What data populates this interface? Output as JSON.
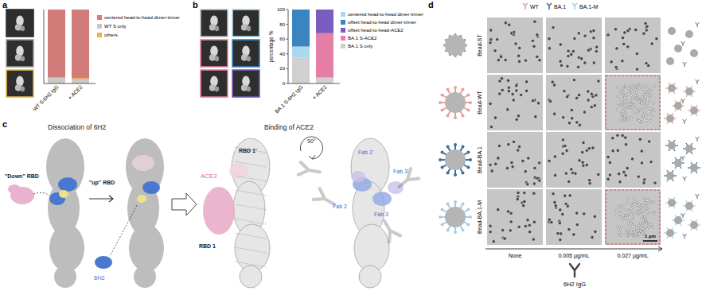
{
  "panel_labels": [
    "a",
    "b",
    "c",
    "d"
  ],
  "chart_data": [
    {
      "type": "bar",
      "stacked": true,
      "legend": "right",
      "tick_labels": "x",
      "categories": [
        "WT S-6H2 IgG",
        "+ ACE2"
      ],
      "ylim": [
        0,
        100
      ],
      "series": [
        {
          "name": "centered head-to-head dimer-trimer",
          "color": "#d27c79",
          "values": [
            92,
            93
          ]
        },
        {
          "name": "WT S only",
          "color": "#c9c9c9",
          "values": [
            8,
            5
          ]
        },
        {
          "name": "others",
          "color": "#e8b84a",
          "values": [
            0,
            2
          ]
        }
      ]
    },
    {
      "type": "bar",
      "stacked": true,
      "legend": "right",
      "y_label": "percentage %",
      "categories": [
        "BA.1 S-6H2 IgG",
        "+ ACE2"
      ],
      "ylim": [
        0,
        100
      ],
      "yticks": [
        0,
        20,
        40,
        60,
        80,
        100
      ],
      "series": [
        {
          "name": "centered head-to-head dimer-trimer",
          "color": "#a9d8ef",
          "values": [
            15,
            0
          ]
        },
        {
          "name": "offset head-to-head dimer-trimer",
          "color": "#3a85c0",
          "values": [
            50,
            0
          ]
        },
        {
          "name": "offset head-to-head-ACE2",
          "color": "#7b5cc0",
          "values": [
            0,
            32
          ]
        },
        {
          "name": "BA.1 S-ACE2",
          "color": "#e67fa6",
          "values": [
            0,
            60
          ]
        },
        {
          "name": "BA.1 S only",
          "color": "#d0d0d0",
          "values": [
            35,
            8
          ]
        }
      ]
    }
  ],
  "panel_c": {
    "labels": [
      "Dissociation of 6H2",
      "\"Down\" RBD",
      "\"up\" RBD",
      "6H2",
      "Binding of ACE2",
      "RBD 1'",
      "ACE2",
      "RBD 1",
      "90°",
      "Fab 2'",
      "Fab 2",
      "Fab 3",
      "Fab 3'"
    ]
  },
  "panel_d": {
    "legend": [
      {
        "name": "WT",
        "color": "#e8a098"
      },
      {
        "name": "BA.1",
        "color": "#3f6f9a"
      },
      {
        "name": "BA.1-M",
        "color": "#a6cde6"
      }
    ],
    "rows": [
      "Bead-ST",
      "Bead-WT",
      "Bead-BA.1",
      "Bead-BA.1-M"
    ],
    "columns": [
      "None",
      "0.005 µg/mL",
      "0.027 µg/mL"
    ],
    "antibody": "6H2 IgG",
    "scale_bar": "1 µm"
  }
}
